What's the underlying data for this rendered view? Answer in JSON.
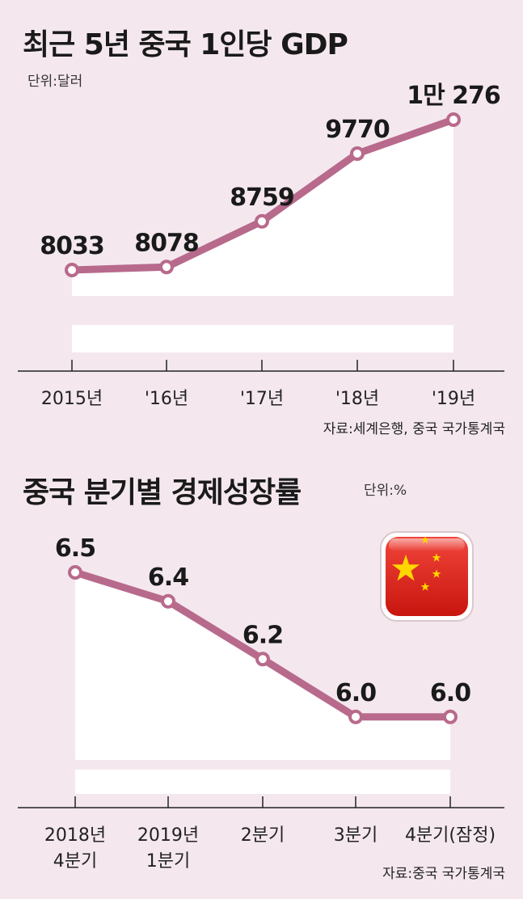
{
  "chart_data": [
    {
      "type": "line",
      "title": "최근 5년 중국 1인당 GDP",
      "unit_label": "단위:달러",
      "categories": [
        "2015년",
        "'16년",
        "'17년",
        "'18년",
        "'19년"
      ],
      "values": [
        8033,
        8078,
        8759,
        9770,
        10276
      ],
      "value_labels": [
        "8033",
        "8078",
        "8759",
        "9770",
        "1만 276"
      ],
      "source": "자료:세계은행, 중국 국가통계국",
      "line_color": "#b86a8c"
    },
    {
      "type": "line",
      "title": "중국 분기별 경제성장률",
      "unit_label": "단위:%",
      "categories": [
        [
          "2018년",
          "4분기"
        ],
        [
          "2019년",
          "1분기"
        ],
        [
          "2분기"
        ],
        [
          "3분기"
        ],
        [
          "4분기(잠정)"
        ]
      ],
      "values": [
        6.5,
        6.4,
        6.2,
        6.0,
        6.0
      ],
      "value_labels": [
        "6.5",
        "6.4",
        "6.2",
        "6.0",
        "6.0"
      ],
      "source": "자료:중국 국가통계국",
      "line_color": "#b86a8c",
      "decoration": "china-flag-icon"
    }
  ]
}
